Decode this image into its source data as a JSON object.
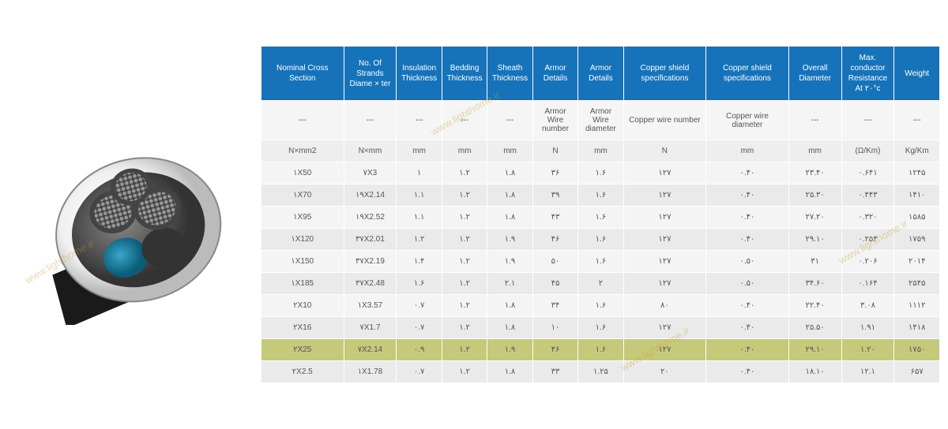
{
  "watermark_text": "www.lighthome.ir",
  "table": {
    "header_bg": "#1673b9",
    "header_color": "#ffffff",
    "highlight_bg": "#c5c97a",
    "columns": [
      "Nominal Cross Section",
      "No. Of Strands Diame × ter",
      "Insulation Thickness",
      "Bedding Thickness",
      "Sheath Thickness",
      "Armor Details",
      "Armor Details",
      "Copper shield specifications",
      "Copper shield specifications",
      "Overall Diameter",
      "Max. conductor Resistance At ۲۰°c",
      "Weight"
    ],
    "sub1": [
      "---",
      "---",
      "---",
      "---",
      "---",
      "Armor Wire number",
      "Armor Wire diameter",
      "Copper wire number",
      "Copper wire diameter",
      "---",
      "---",
      "---"
    ],
    "sub2": [
      "N×mm2",
      "N×mm",
      "mm",
      "mm",
      "mm",
      "N",
      "mm",
      "N",
      "mm",
      "mm",
      "(Ω/Km)",
      "Kg/Km"
    ],
    "rows": [
      {
        "cells": [
          "۱X50",
          "۷X3",
          "۱",
          "۱.۲",
          "۱.۸",
          "۳۶",
          "۱.۶",
          "۱۲۷",
          "۰.۴۰",
          "۲۳.۴۰",
          "۰.۶۴۱",
          "۱۲۴۵"
        ],
        "highlight": false
      },
      {
        "cells": [
          "۱X70",
          "۱۹X2.14",
          "۱.۱",
          "۱.۲",
          "۱.۸",
          "۳۹",
          "۱.۶",
          "۱۲۷",
          "۰.۴۰",
          "۲۵.۳۰",
          "۰.۴۴۳",
          "۱۴۱۰"
        ],
        "highlight": false
      },
      {
        "cells": [
          "۱X95",
          "۱۹X2.52",
          "۱.۱",
          "۱.۲",
          "۱.۸",
          "۴۳",
          "۱.۶",
          "۱۲۷",
          "۰.۴۰",
          "۲۷.۲۰",
          "۰.۳۲۰",
          "۱۵۸۵"
        ],
        "highlight": false
      },
      {
        "cells": [
          "۱X120",
          "۳۷X2.01",
          "۱.۲",
          "۱.۲",
          "۱.۹",
          "۴۶",
          "۱.۶",
          "۱۲۷",
          "۰.۴۰",
          "۲۹.۱۰",
          "۰.۲۵۳",
          "۱۷۵۹"
        ],
        "highlight": false
      },
      {
        "cells": [
          "۱X150",
          "۳۷X2.19",
          "۱.۴",
          "۱.۲",
          "۱.۹",
          "۵۰",
          "۱.۶",
          "۱۲۷",
          "۰.۵۰",
          "۳۱",
          "۰.۲۰۶",
          "۲۰۱۴"
        ],
        "highlight": false
      },
      {
        "cells": [
          "۱X185",
          "۳۷X2.48",
          "۱.۶",
          "۱.۲",
          "۲.۱",
          "۴۵",
          "۲",
          "۱۲۷",
          "۰.۵۰",
          "۳۴.۶۰",
          "۰.۱۶۴",
          "۲۵۴۵"
        ],
        "highlight": false
      },
      {
        "cells": [
          "۲X10",
          "۱X3.57",
          "۰.۷",
          "۱.۲",
          "۱.۸",
          "۳۴",
          "۱.۶",
          "۸۰",
          "۰.۴۰",
          "۲۲.۴۰",
          "۳.۰۸",
          "۱۱۱۲"
        ],
        "highlight": false
      },
      {
        "cells": [
          "۲X16",
          "۷X1.7",
          "۰.۷",
          "۱.۲",
          "۱.۸",
          "۱۰",
          "۱.۶",
          "۱۲۷",
          "۰.۴۰",
          "۲۵.۵۰",
          "۱.۹۱",
          "۱۴۱۸"
        ],
        "highlight": false
      },
      {
        "cells": [
          "۲X25",
          "۷X2.14",
          "۰.۹",
          "۱.۲",
          "۱.۹",
          "۴۶",
          "۱.۶",
          "۱۲۷",
          "۰.۴۰",
          "۲۹.۱۰",
          "۱.۲۰",
          "۱۷۵۰"
        ],
        "highlight": true
      },
      {
        "cells": [
          "۲X2.5",
          "۱X1.78",
          "۰.۷",
          "۱.۲",
          "۱.۸",
          "۳۳",
          "۱.۲۵",
          "۲۰",
          "۰.۴۰",
          "۱۸.۱۰",
          "۱۲.۱",
          "۶۵۷"
        ],
        "highlight": false
      }
    ]
  }
}
